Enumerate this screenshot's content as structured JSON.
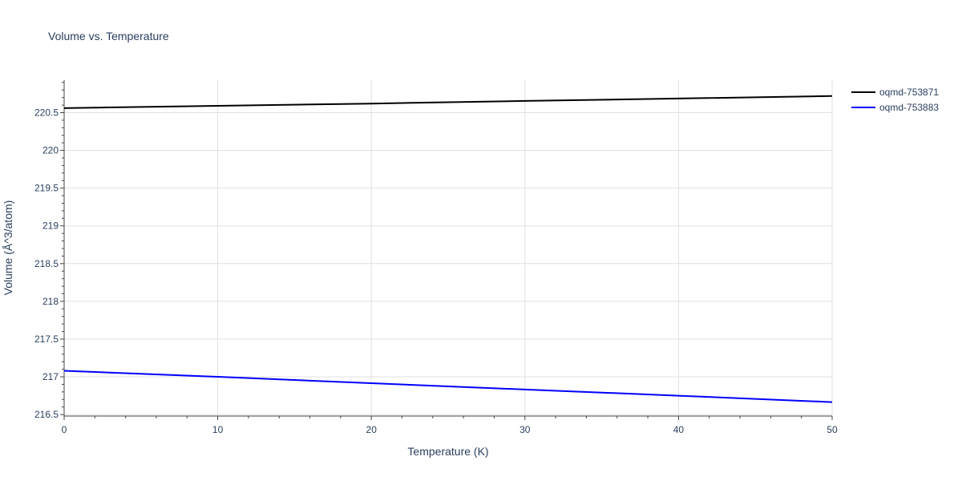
{
  "chart_data": {
    "type": "line",
    "title": "Volume vs. Temperature",
    "xlabel": "Temperature (K)",
    "ylabel": "Volume (Å^3/atom)",
    "xlim": [
      0,
      50
    ],
    "ylim": [
      216.48,
      220.93
    ],
    "x_ticks": [
      0,
      10,
      20,
      30,
      40,
      50
    ],
    "y_ticks": [
      216.5,
      217,
      217.5,
      218,
      218.5,
      219,
      219.5,
      220,
      220.5
    ],
    "y_tick_labels": [
      "216.5",
      "217",
      "217.5",
      "218",
      "218.5",
      "219",
      "219.5",
      "220",
      "220.5"
    ],
    "grid": true,
    "legend_position": "top-right",
    "series": [
      {
        "name": "oqmd-753871",
        "color": "#000000",
        "x": [
          0,
          10,
          20,
          30,
          40,
          50
        ],
        "y": [
          220.56,
          220.59,
          220.62,
          220.655,
          220.687,
          220.72
        ]
      },
      {
        "name": "oqmd-753883",
        "color": "#0000ff",
        "x": [
          0,
          10,
          20,
          30,
          40,
          50
        ],
        "y": [
          217.08,
          217.0,
          216.915,
          216.832,
          216.75,
          216.665
        ]
      }
    ]
  }
}
